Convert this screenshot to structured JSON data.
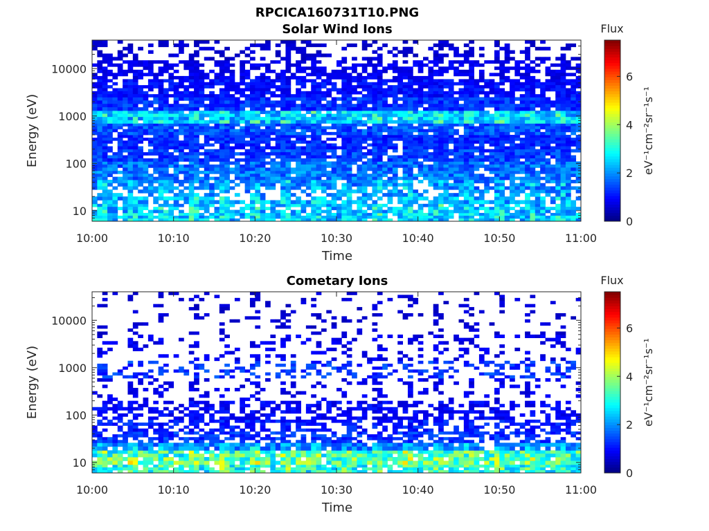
{
  "figure": {
    "title": "RPCICA160731T10.PNG"
  },
  "chart_data": [
    {
      "type": "heatmap",
      "title": "Solar Wind Ions",
      "xlabel": "Time",
      "ylabel": "Energy (eV)",
      "x_range": [
        "10:00",
        "11:00"
      ],
      "x_ticks": [
        "10:00",
        "10:10",
        "10:20",
        "10:30",
        "10:40",
        "10:50",
        "11:00"
      ],
      "y_scale": "log",
      "y_range": [
        6,
        40000
      ],
      "y_ticks": [
        "10",
        "100",
        "1000",
        "10000"
      ],
      "colorbar": {
        "title": "Flux",
        "label": "eV⁻¹cm⁻²sr⁻¹s⁻¹",
        "range": [
          0,
          7.5
        ],
        "ticks": [
          "0",
          "2",
          "4",
          "6"
        ],
        "colormap": "jet"
      },
      "bands": [
        {
          "e_min": 6,
          "e_max": 9,
          "flux": 2.4,
          "fill": 0.85
        },
        {
          "e_min": 9,
          "e_max": 14,
          "flux": 2.3,
          "fill": 0.75
        },
        {
          "e_min": 14,
          "e_max": 20,
          "flux": 2.2,
          "fill": 0.65
        },
        {
          "e_min": 20,
          "e_max": 28,
          "flux": 2.0,
          "fill": 0.6
        },
        {
          "e_min": 28,
          "e_max": 45,
          "flux": 1.9,
          "fill": 0.75
        },
        {
          "e_min": 45,
          "e_max": 70,
          "flux": 1.8,
          "fill": 0.8
        },
        {
          "e_min": 70,
          "e_max": 110,
          "flux": 1.7,
          "fill": 0.85
        },
        {
          "e_min": 110,
          "e_max": 200,
          "flux": 1.4,
          "fill": 0.8
        },
        {
          "e_min": 200,
          "e_max": 400,
          "flux": 1.2,
          "fill": 0.8
        },
        {
          "e_min": 400,
          "e_max": 700,
          "flux": 1.5,
          "fill": 0.85
        },
        {
          "e_min": 700,
          "e_max": 1300,
          "flux": 2.4,
          "fill": 0.95
        },
        {
          "e_min": 1300,
          "e_max": 2500,
          "flux": 1.3,
          "fill": 0.85
        },
        {
          "e_min": 2500,
          "e_max": 6000,
          "flux": 1.0,
          "fill": 0.75
        },
        {
          "e_min": 6000,
          "e_max": 15000,
          "flux": 0.8,
          "fill": 0.55
        },
        {
          "e_min": 15000,
          "e_max": 40000,
          "flux": 0.6,
          "fill": 0.3
        }
      ]
    },
    {
      "type": "heatmap",
      "title": "Cometary Ions",
      "xlabel": "Time",
      "ylabel": "Energy (eV)",
      "x_range": [
        "10:00",
        "11:00"
      ],
      "x_ticks": [
        "10:00",
        "10:10",
        "10:20",
        "10:30",
        "10:40",
        "10:50",
        "11:00"
      ],
      "y_scale": "log",
      "y_range": [
        6,
        40000
      ],
      "y_ticks": [
        "10",
        "100",
        "1000",
        "10000"
      ],
      "colorbar": {
        "title": "Flux",
        "label": "eV⁻¹cm⁻²sr⁻¹s⁻¹",
        "range": [
          0,
          7.5
        ],
        "ticks": [
          "0",
          "2",
          "4",
          "6"
        ],
        "colormap": "jet"
      },
      "bands": [
        {
          "e_min": 6,
          "e_max": 9,
          "flux": 3.0,
          "fill": 0.8
        },
        {
          "e_min": 9,
          "e_max": 13,
          "flux": 3.4,
          "fill": 0.85
        },
        {
          "e_min": 13,
          "e_max": 18,
          "flux": 3.2,
          "fill": 0.85
        },
        {
          "e_min": 18,
          "e_max": 26,
          "flux": 1.9,
          "fill": 0.8
        },
        {
          "e_min": 26,
          "e_max": 45,
          "flux": 1.3,
          "fill": 0.55
        },
        {
          "e_min": 45,
          "e_max": 80,
          "flux": 1.1,
          "fill": 0.45
        },
        {
          "e_min": 80,
          "e_max": 200,
          "flux": 0.9,
          "fill": 0.45
        },
        {
          "e_min": 200,
          "e_max": 600,
          "flux": 0.8,
          "fill": 0.15
        },
        {
          "e_min": 600,
          "e_max": 1400,
          "flux": 1.3,
          "fill": 0.3
        },
        {
          "e_min": 1400,
          "e_max": 5000,
          "flux": 0.8,
          "fill": 0.15
        },
        {
          "e_min": 5000,
          "e_max": 40000,
          "flux": 0.6,
          "fill": 0.06
        }
      ]
    }
  ]
}
